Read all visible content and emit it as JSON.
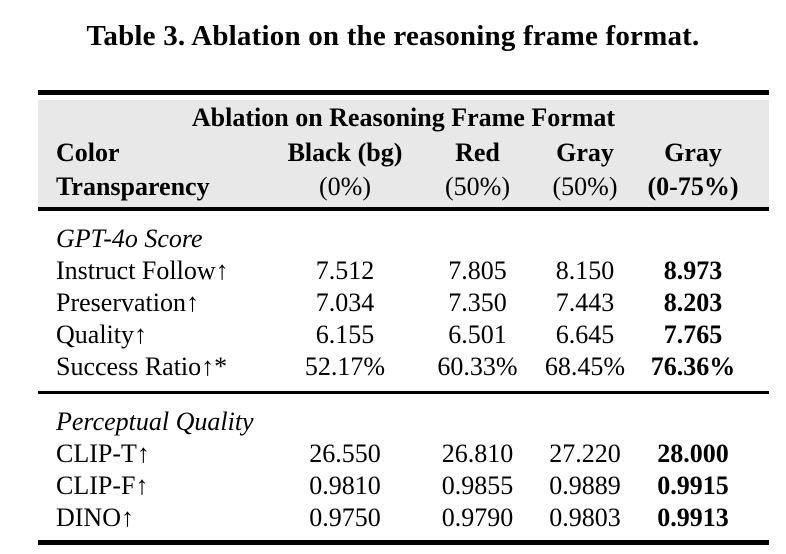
{
  "caption": "Table 3. Ablation on the reasoning frame format.",
  "table": {
    "band_title": "Ablation on Reasoning Frame Format",
    "row_header": {
      "line1": "Color",
      "line2": "Transparency"
    },
    "columns": [
      {
        "color": "Black (bg)",
        "transparency": "(0%)"
      },
      {
        "color": "Red",
        "transparency": "(50%)"
      },
      {
        "color": "Gray",
        "transparency": "(50%)"
      },
      {
        "color": "Gray",
        "transparency": "(0-75%)"
      }
    ],
    "sections": [
      {
        "title": "GPT-4o Score",
        "rows": [
          {
            "label": "Instruct Follow↑",
            "values": [
              "7.512",
              "7.805",
              "8.150",
              "8.973"
            ]
          },
          {
            "label": "Preservation↑",
            "values": [
              "7.034",
              "7.350",
              "7.443",
              "8.203"
            ]
          },
          {
            "label": "Quality↑",
            "values": [
              "6.155",
              "6.501",
              "6.645",
              "7.765"
            ]
          },
          {
            "label": "Success Ratio↑*",
            "values": [
              "52.17%",
              "60.33%",
              "68.45%",
              "76.36%"
            ]
          }
        ]
      },
      {
        "title": "Perceptual Quality",
        "rows": [
          {
            "label": "CLIP-T↑",
            "values": [
              "26.550",
              "26.810",
              "27.220",
              "28.000"
            ]
          },
          {
            "label": "CLIP-F↑",
            "values": [
              "0.9810",
              "0.9855",
              "0.9889",
              "0.9915"
            ]
          },
          {
            "label": "DINO↑",
            "values": [
              "0.9750",
              "0.9790",
              "0.9803",
              "0.9913"
            ]
          }
        ]
      }
    ]
  },
  "colors": {
    "page_bg": "#ffffff",
    "text": "#000000",
    "header_band_bg": "#e8e8e8",
    "rule": "#000000"
  }
}
